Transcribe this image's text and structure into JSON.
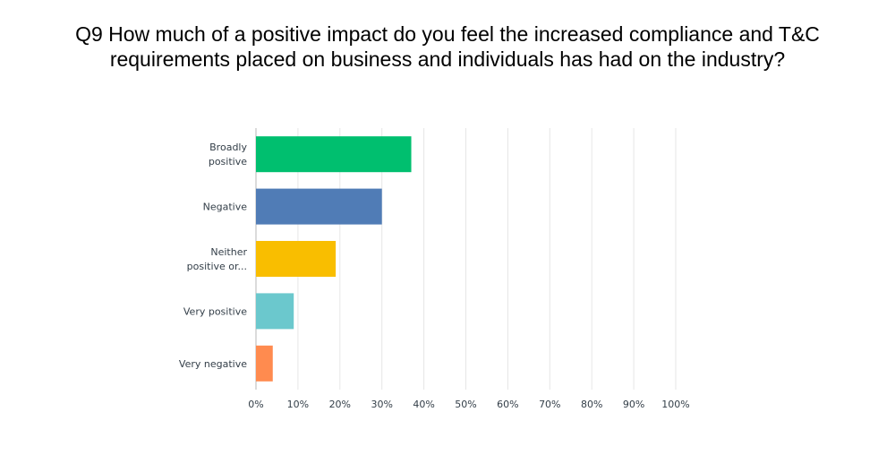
{
  "title": {
    "line1": "Q9 How much of a positive impact do you feel the increased compliance and T&C",
    "line2": "requirements placed on business and individuals has had on the industry?"
  },
  "chart_data": {
    "type": "bar",
    "orientation": "horizontal",
    "categories": [
      [
        "Broadly",
        "positive"
      ],
      [
        "Negative"
      ],
      [
        "Neither",
        "positive or..."
      ],
      [
        "Very positive"
      ],
      [
        "Very negative"
      ]
    ],
    "values": [
      37,
      30,
      19,
      9,
      4
    ],
    "colors": [
      "#00bf6f",
      "#507cb6",
      "#f9be00",
      "#6bc8cd",
      "#ff8b4f"
    ],
    "xlim": [
      0,
      100
    ],
    "xticks": [
      "0%",
      "10%",
      "20%",
      "30%",
      "40%",
      "50%",
      "60%",
      "70%",
      "80%",
      "90%",
      "100%"
    ],
    "grid": true,
    "legend": "none"
  }
}
